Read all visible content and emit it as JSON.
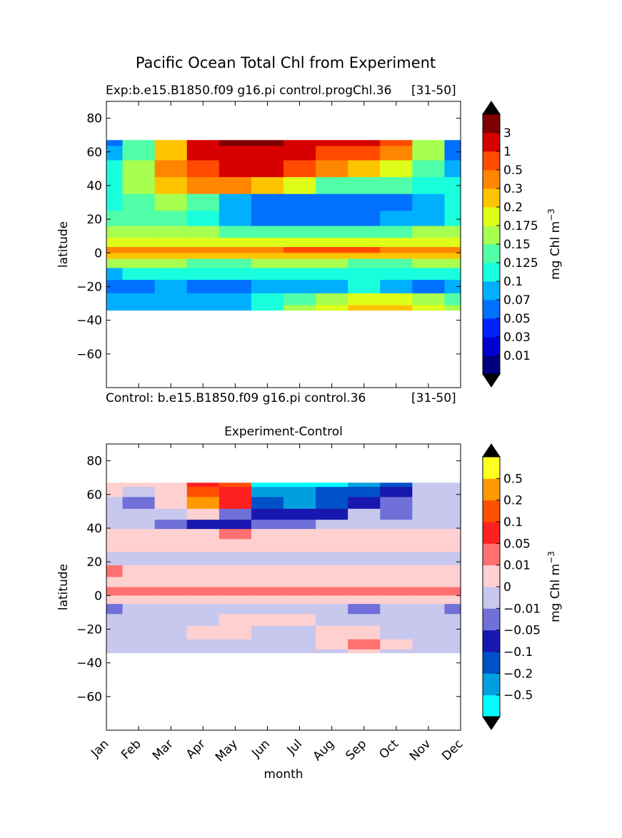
{
  "title": "Pacific Ocean Total Chl from Experiment",
  "panels": [
    {
      "title_left": "Exp:b.e15.B1850.f09 g16.pi control.progChl.36",
      "title_right": "[31-50]",
      "bottom_left": "Control: b.e15.B1850.f09 g16.pi control.36",
      "bottom_right": "[31-50]"
    },
    {
      "title_center": "Experiment-Control"
    }
  ],
  "chart_data": [
    {
      "type": "heatmap",
      "title": "Exp:b.e15.B1850.f09 g16.pi control.progChl.36",
      "subtitle": "[31-50]",
      "ylabel": "latitude",
      "xlabel": "",
      "xlim": [
        0,
        11
      ],
      "ylim": [
        -80,
        90
      ],
      "yticks": [
        80,
        60,
        40,
        20,
        0,
        -20,
        -40,
        -60
      ],
      "data_lat_range": [
        -34,
        67
      ],
      "colorbar": {
        "label": "mg Chl m",
        "label_sup": "−3",
        "levels": [
          "0.01",
          "0.03",
          "0.05",
          "0.07",
          "0.1",
          "0.125",
          "0.15",
          "0.175",
          "0.2",
          "0.3",
          "0.5",
          "1",
          "3"
        ],
        "colors": [
          "#00007f",
          "#0000d0",
          "#0020ff",
          "#0070ff",
          "#00b0ff",
          "#19ffdd",
          "#50ffa7",
          "#a7ff50",
          "#ddff19",
          "#ffc400",
          "#ff8600",
          "#ff4a00",
          "#d60000",
          "#7f0000"
        ],
        "extend": "both",
        "extend_colors": [
          "#000000",
          "#000000"
        ]
      },
      "field": {
        "lats": [
          67,
          60,
          50,
          40,
          30,
          20,
          12,
          6,
          1,
          -1,
          -6,
          -12,
          -20,
          -28,
          -34
        ],
        "months": [
          "Jan",
          "Feb",
          "Mar",
          "Apr",
          "May",
          "Jun",
          "Jul",
          "Aug",
          "Sep",
          "Oct",
          "Nov",
          "Dec"
        ],
        "level_index": [
          [
            3,
            6,
            9,
            12,
            13,
            13,
            12,
            12,
            12,
            11,
            7,
            3
          ],
          [
            4,
            6,
            9,
            12,
            12,
            12,
            12,
            11,
            11,
            10,
            7,
            3
          ],
          [
            5,
            7,
            10,
            11,
            12,
            12,
            11,
            10,
            9,
            8,
            6,
            4
          ],
          [
            5,
            7,
            9,
            10,
            10,
            9,
            8,
            6,
            6,
            6,
            5,
            5
          ],
          [
            5,
            6,
            7,
            6,
            4,
            3,
            3,
            3,
            3,
            3,
            4,
            5
          ],
          [
            6,
            6,
            6,
            5,
            4,
            3,
            3,
            3,
            3,
            4,
            4,
            5
          ],
          [
            7,
            7,
            7,
            7,
            6,
            6,
            6,
            6,
            6,
            6,
            7,
            7
          ],
          [
            8,
            8,
            8,
            8,
            8,
            8,
            8,
            8,
            8,
            8,
            8,
            8
          ],
          [
            10,
            10,
            10,
            10,
            10,
            10,
            11,
            11,
            11,
            10,
            10,
            10
          ],
          [
            9,
            9,
            9,
            9,
            9,
            9,
            9,
            9,
            9,
            9,
            9,
            9
          ],
          [
            7,
            7,
            7,
            6,
            6,
            7,
            7,
            7,
            6,
            6,
            7,
            7
          ],
          [
            4,
            5,
            5,
            5,
            5,
            5,
            5,
            5,
            5,
            5,
            5,
            5
          ],
          [
            3,
            3,
            4,
            3,
            3,
            4,
            4,
            4,
            5,
            4,
            3,
            4
          ],
          [
            4,
            4,
            4,
            4,
            4,
            5,
            6,
            7,
            8,
            8,
            7,
            6
          ],
          [
            4,
            4,
            4,
            4,
            4,
            5,
            7,
            8,
            9,
            9,
            8,
            7
          ]
        ]
      }
    },
    {
      "type": "heatmap",
      "title": "Experiment-Control",
      "xlabel": "month",
      "ylabel": "latitude",
      "xlim": [
        0,
        11
      ],
      "ylim": [
        -80,
        90
      ],
      "xticks": [
        "Jan",
        "Feb",
        "Mar",
        "Apr",
        "May",
        "Jun",
        "Jul",
        "Aug",
        "Sep",
        "Oct",
        "Nov",
        "Dec"
      ],
      "yticks": [
        80,
        60,
        40,
        20,
        0,
        -20,
        -40,
        -60
      ],
      "data_lat_range": [
        -34,
        67
      ],
      "colorbar": {
        "label": "mg Chl m",
        "label_sup": "−3",
        "levels": [
          "-0.5",
          "-0.2",
          "-0.1",
          "-0.05",
          "-0.01",
          "0",
          "0.01",
          "0.05",
          "0.1",
          "0.2",
          "0.5"
        ],
        "colors": [
          "#00ffff",
          "#00a0e0",
          "#0050c8",
          "#1818b0",
          "#7070d8",
          "#c8c8ee",
          "#ffd0d0",
          "#ff7070",
          "#ff2020",
          "#ff5000",
          "#ff9900",
          "#ffff20"
        ],
        "extend": "both",
        "extend_colors": [
          "#000000",
          "#000000"
        ]
      },
      "field": {
        "lats": [
          67,
          62,
          55,
          48,
          42,
          37,
          30,
          22,
          14,
          8,
          2,
          -2,
          -8,
          -14,
          -22,
          -30,
          -34
        ],
        "months": [
          "Jan",
          "Feb",
          "Mar",
          "Apr",
          "May",
          "Jun",
          "Jul",
          "Aug",
          "Sep",
          "Oct",
          "Nov",
          "Dec"
        ],
        "level_index": [
          [
            6,
            6,
            6,
            8,
            9,
            0,
            0,
            0,
            1,
            2,
            5,
            5
          ],
          [
            6,
            5,
            6,
            9,
            8,
            1,
            1,
            2,
            2,
            3,
            5,
            5
          ],
          [
            5,
            4,
            6,
            10,
            8,
            2,
            1,
            2,
            3,
            4,
            5,
            5
          ],
          [
            5,
            5,
            5,
            6,
            4,
            3,
            3,
            3,
            5,
            4,
            5,
            5
          ],
          [
            5,
            5,
            4,
            3,
            3,
            4,
            4,
            5,
            5,
            5,
            5,
            5
          ],
          [
            6,
            6,
            6,
            6,
            7,
            6,
            6,
            6,
            6,
            6,
            6,
            6
          ],
          [
            6,
            6,
            6,
            6,
            6,
            6,
            6,
            6,
            6,
            6,
            6,
            6
          ],
          [
            5,
            5,
            5,
            5,
            5,
            5,
            5,
            5,
            5,
            5,
            5,
            5
          ],
          [
            7,
            6,
            6,
            6,
            6,
            6,
            6,
            6,
            6,
            6,
            6,
            6
          ],
          [
            6,
            6,
            6,
            6,
            6,
            6,
            6,
            6,
            6,
            6,
            6,
            6
          ],
          [
            7,
            7,
            7,
            7,
            7,
            7,
            7,
            7,
            7,
            7,
            7,
            7
          ],
          [
            6,
            6,
            6,
            6,
            6,
            6,
            6,
            6,
            6,
            6,
            6,
            6
          ],
          [
            4,
            5,
            5,
            5,
            5,
            5,
            5,
            5,
            4,
            5,
            5,
            4
          ],
          [
            5,
            5,
            5,
            5,
            6,
            6,
            6,
            5,
            5,
            5,
            5,
            5
          ],
          [
            5,
            5,
            5,
            6,
            6,
            5,
            5,
            6,
            6,
            5,
            5,
            5
          ],
          [
            5,
            5,
            5,
            5,
            5,
            5,
            5,
            6,
            7,
            6,
            5,
            5
          ],
          [
            5,
            5,
            5,
            5,
            5,
            5,
            5,
            5,
            6,
            5,
            5,
            5
          ]
        ]
      }
    }
  ]
}
